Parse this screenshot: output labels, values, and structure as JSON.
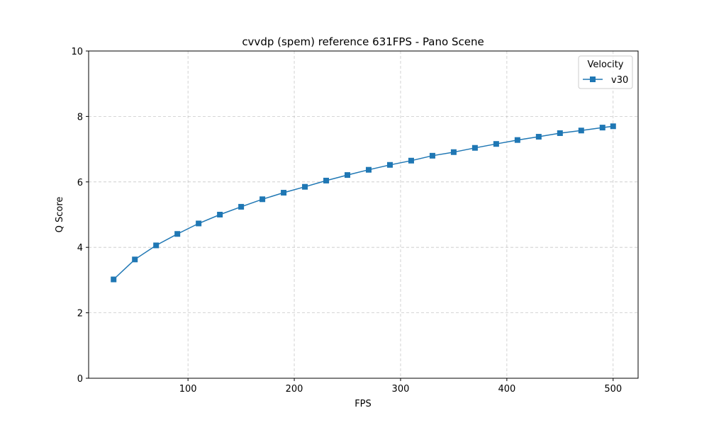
{
  "chart_data": {
    "type": "line",
    "title": "cvvdp (spem) reference 631FPS - Pano Scene",
    "xlabel": "FPS",
    "ylabel": "Q Score",
    "xlim": [
      6.5,
      523.5
    ],
    "ylim": [
      0,
      10
    ],
    "xticks": [
      100,
      200,
      300,
      400,
      500
    ],
    "yticks": [
      0,
      2,
      4,
      6,
      8,
      10
    ],
    "grid": true,
    "legend": {
      "title": "Velocity",
      "placement": "top-right"
    },
    "series": [
      {
        "name": "v30",
        "color": "#1f77b4",
        "marker": "square",
        "x": [
          30,
          50,
          70,
          90,
          110,
          130,
          150,
          170,
          190,
          210,
          230,
          250,
          270,
          290,
          310,
          330,
          350,
          370,
          390,
          410,
          430,
          450,
          470,
          490,
          500
        ],
        "y": [
          3.02,
          3.63,
          4.06,
          4.41,
          4.73,
          5.0,
          5.24,
          5.47,
          5.67,
          5.85,
          6.04,
          6.21,
          6.37,
          6.52,
          6.65,
          6.8,
          6.91,
          7.04,
          7.16,
          7.28,
          7.38,
          7.49,
          7.57,
          7.66,
          7.7
        ]
      }
    ]
  }
}
